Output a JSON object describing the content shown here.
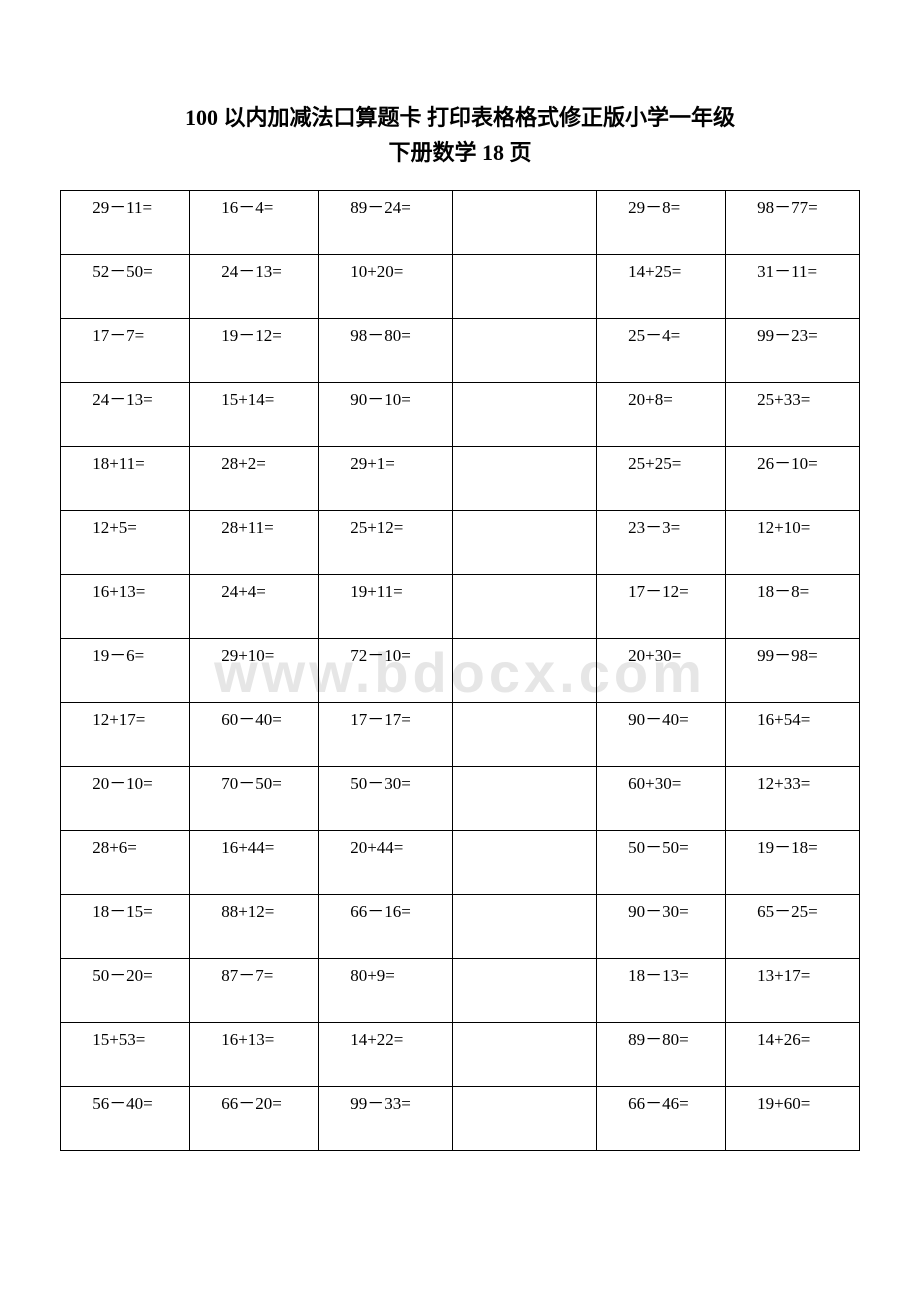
{
  "title": {
    "line1": "100 以内加减法口算题卡 打印表格格式修正版小学一年级",
    "line2": "下册数学 18 页"
  },
  "watermark": "www.bdocx.com",
  "table": {
    "rows": [
      [
        "29－11=",
        "16－4=",
        "89－24=",
        "",
        "29－8=",
        "98－77="
      ],
      [
        "52－50=",
        "24－13=",
        "10+20=",
        "",
        "14+25=",
        "31－11="
      ],
      [
        "17－7=",
        "19－12=",
        "98－80=",
        "",
        "25－4=",
        "99－23="
      ],
      [
        "24－13=",
        "15+14=",
        "90－10=",
        "",
        "20+8=",
        "25+33="
      ],
      [
        "18+11=",
        "28+2=",
        "29+1=",
        "",
        "25+25=",
        "26－10="
      ],
      [
        "12+5=",
        "28+11=",
        "25+12=",
        "",
        "23－3=",
        "12+10="
      ],
      [
        "16+13=",
        "24+4=",
        "19+11=",
        "",
        "17－12=",
        "18－8="
      ],
      [
        "19－6=",
        "29+10=",
        "72－10=",
        "",
        "20+30=",
        "99－98="
      ],
      [
        "12+17=",
        "60－40=",
        "17－17=",
        "",
        "90－40=",
        "16+54="
      ],
      [
        "20－10=",
        "70－50=",
        "50－30=",
        "",
        "60+30=",
        "12+33="
      ],
      [
        "28+6=",
        "16+44=",
        "20+44=",
        "",
        "50－50=",
        "19－18="
      ],
      [
        "18－15=",
        "88+12=",
        "66－16=",
        "",
        "90－30=",
        "65－25="
      ],
      [
        "50－20=",
        "87－7=",
        "80+9=",
        "",
        "18－13=",
        "13+17="
      ],
      [
        "15+53=",
        "16+13=",
        "14+22=",
        "",
        "89－80=",
        "14+26="
      ],
      [
        "56－40=",
        "66－20=",
        "99－33=",
        "",
        "66－46=",
        "19+60="
      ]
    ]
  }
}
